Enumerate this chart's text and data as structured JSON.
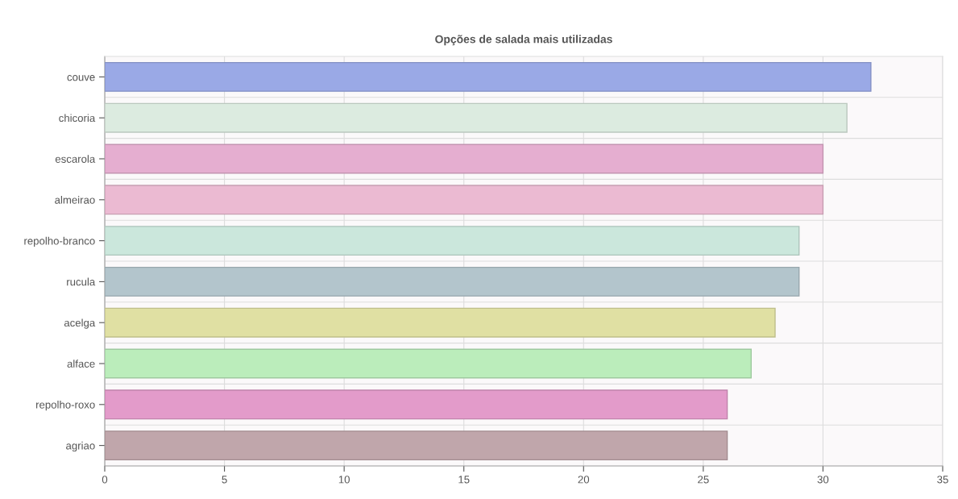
{
  "chart_data": {
    "type": "bar",
    "orientation": "horizontal",
    "title": "Opções de salada mais utilizadas",
    "categories": [
      "couve",
      "chicoria",
      "escarola",
      "almeirao",
      "repolho-branco",
      "rucula",
      "acelga",
      "alface",
      "repolho-roxo",
      "agriao"
    ],
    "values": [
      32,
      31,
      30,
      30,
      29,
      29,
      28,
      27,
      26,
      26
    ],
    "colors": [
      "#9aa9e6",
      "#dcebe0",
      "#e5aed0",
      "#ebbad2",
      "#cbe7dc",
      "#b3c5cc",
      "#e0e0a3",
      "#bbedbb",
      "#e39bca",
      "#c0a6ab"
    ],
    "xlim": [
      0,
      35
    ],
    "xticks": [
      0,
      5,
      10,
      15,
      20,
      25,
      30,
      35
    ],
    "grid": true,
    "legend": false
  }
}
